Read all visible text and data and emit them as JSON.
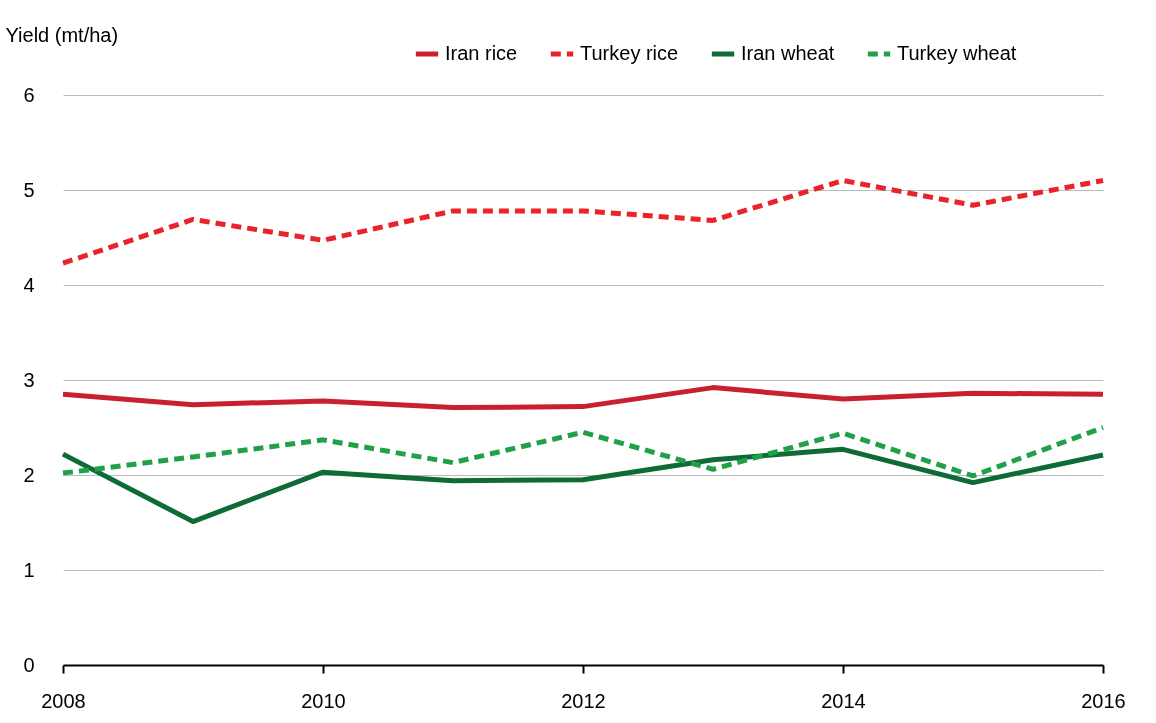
{
  "chart_data": {
    "type": "line",
    "ylabel": "Yield (mt/ha)",
    "x": [
      2008,
      2009,
      2010,
      2011,
      2012,
      2013,
      2014,
      2015,
      2016
    ],
    "series": [
      {
        "name": "Iran rice",
        "color": "#c8202f",
        "line_style": "solid",
        "values": [
          2.85,
          2.74,
          2.78,
          2.71,
          2.72,
          2.92,
          2.8,
          2.86,
          2.85
        ]
      },
      {
        "name": "Turkey rice",
        "color": "#e8232b",
        "line_style": "dashed",
        "values": [
          4.23,
          4.69,
          4.47,
          4.78,
          4.78,
          4.68,
          5.1,
          4.84,
          5.1
        ]
      },
      {
        "name": "Iran wheat",
        "color": "#0e6b36",
        "line_style": "solid",
        "values": [
          2.22,
          1.51,
          2.03,
          1.94,
          1.95,
          2.16,
          2.27,
          1.92,
          2.21
        ]
      },
      {
        "name": "Turkey wheat",
        "color": "#21a04a",
        "line_style": "dashed",
        "values": [
          2.02,
          2.19,
          2.37,
          2.13,
          2.45,
          2.06,
          2.44,
          1.99,
          2.5
        ]
      }
    ],
    "xlim": [
      2008,
      2016
    ],
    "xticks": [
      2008,
      2010,
      2012,
      2014,
      2016
    ],
    "ylim": [
      0,
      6
    ],
    "yticks": [
      0,
      1,
      2,
      3,
      4,
      5,
      6
    ],
    "grid": "y",
    "legend": "top right",
    "marker": "none"
  }
}
